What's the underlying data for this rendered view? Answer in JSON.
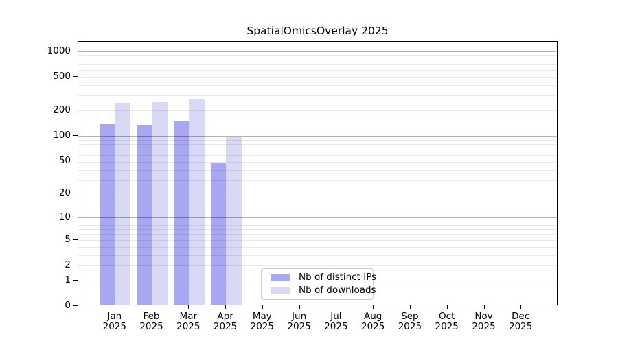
{
  "chart_data": {
    "type": "bar",
    "title": "SpatialOmicsOverlay 2025",
    "categories": [
      "Jan 2025",
      "Feb 2025",
      "Mar 2025",
      "Apr 2025",
      "May 2025",
      "Jun 2025",
      "Jul 2025",
      "Aug 2025",
      "Sep 2025",
      "Oct 2025",
      "Nov 2025",
      "Dec 2025"
    ],
    "series": [
      {
        "name": "Nb of distinct IPs",
        "color_key": "distinct_ips",
        "values": [
          133,
          129,
          144,
          45,
          null,
          null,
          null,
          null,
          null,
          null,
          null,
          null
        ]
      },
      {
        "name": "Nb of downloads",
        "color_key": "downloads",
        "values": [
          237,
          242,
          260,
          94,
          null,
          null,
          null,
          null,
          null,
          null,
          null,
          null
        ]
      }
    ],
    "yscale": "log1p",
    "ylim": [
      0,
      1285
    ],
    "yticks": [
      0,
      1,
      2,
      5,
      10,
      20,
      50,
      100,
      200,
      500,
      1000
    ],
    "major_gridlines": [
      1,
      10,
      100,
      1000
    ],
    "minor_gridlines": [
      1,
      2,
      3,
      4,
      5,
      6,
      7,
      8,
      19,
      29,
      39,
      49,
      59,
      69,
      79,
      89,
      199,
      299,
      399,
      499,
      599,
      699,
      799,
      899
    ],
    "grid": true,
    "legend_position": "inside-bottom-center",
    "xlabel": "",
    "ylabel": ""
  },
  "colors": {
    "distinct_ips": "#a7a7f2",
    "downloads": "#d9d9f6",
    "major_grid": "rgba(0,0,0,0.30)",
    "minor_grid": "rgba(0,0,0,0.085)",
    "axis": "#000000",
    "text": "#000000",
    "legend_border": "#cccccc",
    "background": "#ffffff"
  }
}
